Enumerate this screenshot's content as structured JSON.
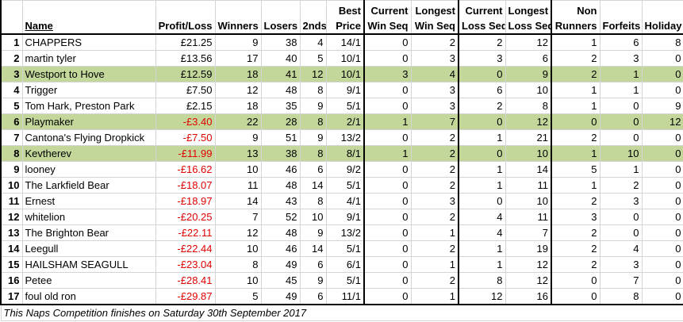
{
  "header": [
    [
      "Name"
    ],
    [
      "Profit/Loss"
    ],
    [
      "Winners"
    ],
    [
      "Losers"
    ],
    [
      "2nds"
    ],
    [
      "Best",
      "Price"
    ],
    [
      "Current",
      "Win Seq"
    ],
    [
      "Longest",
      "Win Seq"
    ],
    [
      "Current",
      "Loss Seq"
    ],
    [
      "Longest",
      "Loss Seq"
    ],
    [
      "Non",
      "Runners"
    ],
    [
      "Forfeits"
    ],
    [
      "Holiday"
    ]
  ],
  "rows": [
    {
      "cells": [
        1,
        "CHAPPERS",
        "£21.25",
        9,
        38,
        4,
        "14/1",
        0,
        2,
        2,
        12,
        1,
        6,
        8
      ]
    },
    {
      "cells": [
        2,
        "martin tyler",
        "£13.56",
        17,
        40,
        5,
        "10/1",
        0,
        3,
        3,
        6,
        2,
        3,
        0
      ]
    },
    {
      "cells": [
        3,
        "Westport to Hove",
        "£12.59",
        18,
        41,
        12,
        "10/1",
        3,
        4,
        0,
        9,
        2,
        1,
        0
      ],
      "highlight": true
    },
    {
      "cells": [
        4,
        "Trigger",
        "£7.50",
        12,
        48,
        8,
        "9/1",
        0,
        3,
        6,
        10,
        1,
        1,
        0
      ]
    },
    {
      "cells": [
        5,
        "Tom Hark, Preston Park",
        "£2.15",
        18,
        35,
        9,
        "5/1",
        0,
        3,
        2,
        8,
        1,
        0,
        9
      ]
    },
    {
      "cells": [
        6,
        "Playmaker",
        "-£3.40",
        22,
        28,
        8,
        "2/1",
        1,
        7,
        0,
        12,
        0,
        0,
        12
      ],
      "highlight": true
    },
    {
      "cells": [
        7,
        "Cantona's Flying Dropkick",
        "-£7.50",
        9,
        51,
        9,
        "13/2",
        0,
        2,
        1,
        21,
        2,
        0,
        0
      ]
    },
    {
      "cells": [
        8,
        "Kevtherev",
        "-£11.99",
        13,
        38,
        8,
        "8/1",
        1,
        2,
        0,
        10,
        1,
        10,
        0
      ],
      "highlight": true
    },
    {
      "cells": [
        9,
        "looney",
        "-£16.62",
        10,
        46,
        6,
        "9/2",
        0,
        2,
        1,
        14,
        5,
        1,
        0
      ]
    },
    {
      "cells": [
        10,
        "The Larkfield Bear",
        "-£18.07",
        11,
        48,
        14,
        "5/1",
        0,
        2,
        1,
        11,
        1,
        2,
        0
      ]
    },
    {
      "cells": [
        11,
        "Ernest",
        "-£18.97",
        14,
        43,
        8,
        "4/1",
        0,
        3,
        0,
        10,
        2,
        3,
        0
      ]
    },
    {
      "cells": [
        12,
        "whitelion",
        "-£20.25",
        7,
        52,
        10,
        "9/1",
        0,
        2,
        4,
        11,
        3,
        0,
        0
      ]
    },
    {
      "cells": [
        13,
        "The Brighton Bear",
        "-£22.11",
        12,
        48,
        9,
        "13/2",
        0,
        1,
        4,
        7,
        2,
        0,
        0
      ]
    },
    {
      "cells": [
        14,
        "Leegull",
        "-£22.44",
        10,
        46,
        14,
        "5/1",
        0,
        2,
        1,
        19,
        2,
        4,
        0
      ]
    },
    {
      "cells": [
        15,
        "HAILSHAM SEAGULL",
        "-£23.04",
        8,
        49,
        6,
        "6/1",
        0,
        1,
        1,
        12,
        2,
        3,
        0
      ]
    },
    {
      "cells": [
        16,
        "Petee",
        "-£28.41",
        10,
        45,
        9,
        "5/1",
        0,
        2,
        8,
        12,
        0,
        7,
        0
      ]
    },
    {
      "cells": [
        17,
        "foul old ron",
        "-£29.87",
        5,
        49,
        6,
        "11/1",
        0,
        1,
        12,
        16,
        0,
        8,
        0
      ]
    }
  ],
  "footer": "This Naps Competition finishes on Saturday 30th September 2017"
}
